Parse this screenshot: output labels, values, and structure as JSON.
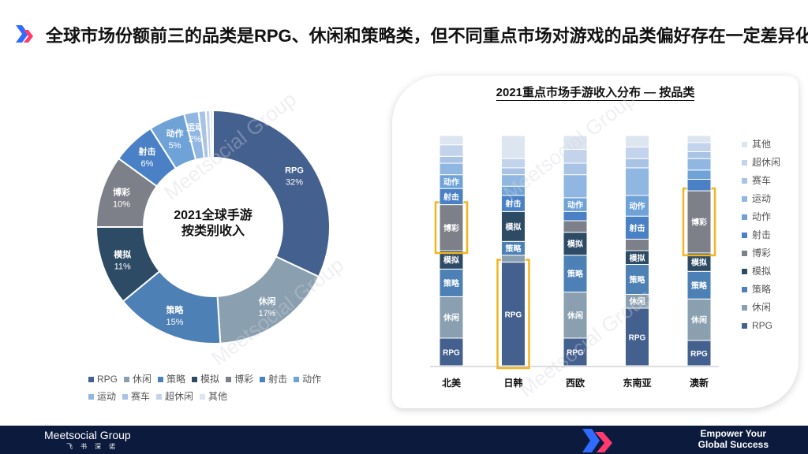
{
  "page": {
    "title": "全球市场份额前三的品类是RPG、休闲和策略类，但不同重点市场对游戏的品类偏好存在一定差异化",
    "footer_brand": "Meetsocial Group",
    "footer_brand_sub": "飞书深诺",
    "footer_slogan_line1": "Empower Your",
    "footer_slogan_line2": "Global Success",
    "watermark": "Meetsocial Group"
  },
  "colors": {
    "RPG": "#44608f",
    "休闲": "#8a9faf",
    "策略": "#4d80b5",
    "模拟": "#2e4b66",
    "博彩": "#7d8088",
    "射击": "#4a80c6",
    "动作": "#6fa3d8",
    "运动": "#8fb7e2",
    "赛车": "#a9c3e5",
    "超休闲": "#c3d3ec",
    "其他": "#dde5f1",
    "highlight": "#f2b61e",
    "footer": "#0c1b3d"
  },
  "chart_data": [
    {
      "type": "pie",
      "style": "donut",
      "title": "2021全球手游",
      "subtitle": "按类别收入",
      "categories": [
        "RPG",
        "休闲",
        "策略",
        "模拟",
        "博彩",
        "射击",
        "动作",
        "运动",
        "赛车",
        "超休闲",
        "其他"
      ],
      "values": [
        32,
        17,
        15,
        11,
        10,
        6,
        5,
        2,
        1,
        0.6,
        0.4
      ],
      "labels_shown": {
        "RPG": "32%",
        "休闲": "17%",
        "策略": "15%",
        "模拟": "11%",
        "博彩": "10%",
        "射击": "6%",
        "动作": "5%",
        "运动": "2%"
      },
      "legend": [
        "RPG",
        "休闲",
        "策略",
        "模拟",
        "博彩",
        "射击",
        "动作",
        "运动",
        "赛车",
        "超休闲",
        "其他"
      ],
      "legend_position": "bottom"
    },
    {
      "type": "bar",
      "stacked": "100%",
      "title": "2021重点市场手游收入分布 — 按品类",
      "categories": [
        "北美",
        "日韩",
        "西欧",
        "东南亚",
        "澳新"
      ],
      "series": [
        {
          "name": "RPG",
          "values": [
            12,
            45,
            12,
            25,
            11
          ]
        },
        {
          "name": "休闲",
          "values": [
            18,
            3,
            20,
            6,
            18
          ]
        },
        {
          "name": "策略",
          "values": [
            12,
            6,
            16,
            13,
            12
          ]
        },
        {
          "name": "模拟",
          "values": [
            8,
            13,
            10,
            6,
            8
          ]
        },
        {
          "name": "博彩",
          "values": [
            20,
            0,
            5,
            5,
            27
          ]
        },
        {
          "name": "射击",
          "values": [
            7,
            7,
            4,
            10,
            5
          ]
        },
        {
          "name": "动作",
          "values": [
            6,
            4,
            6,
            9,
            4
          ]
        },
        {
          "name": "运动",
          "values": [
            5,
            5,
            10,
            12,
            5
          ]
        },
        {
          "name": "赛车",
          "values": [
            3,
            3,
            5,
            4,
            3
          ]
        },
        {
          "name": "超休闲",
          "values": [
            5,
            4,
            6,
            5,
            4
          ]
        },
        {
          "name": "其他",
          "values": [
            4,
            10,
            6,
            5,
            3
          ]
        }
      ],
      "highlights": [
        {
          "category": "北美",
          "segment": "博彩"
        },
        {
          "category": "日韩",
          "segment": "RPG"
        },
        {
          "category": "澳新",
          "segment": "博彩"
        }
      ],
      "legend": [
        "其他",
        "超休闲",
        "赛车",
        "运动",
        "动作",
        "射击",
        "博彩",
        "模拟",
        "策略",
        "休闲",
        "RPG"
      ],
      "legend_position": "right"
    }
  ]
}
